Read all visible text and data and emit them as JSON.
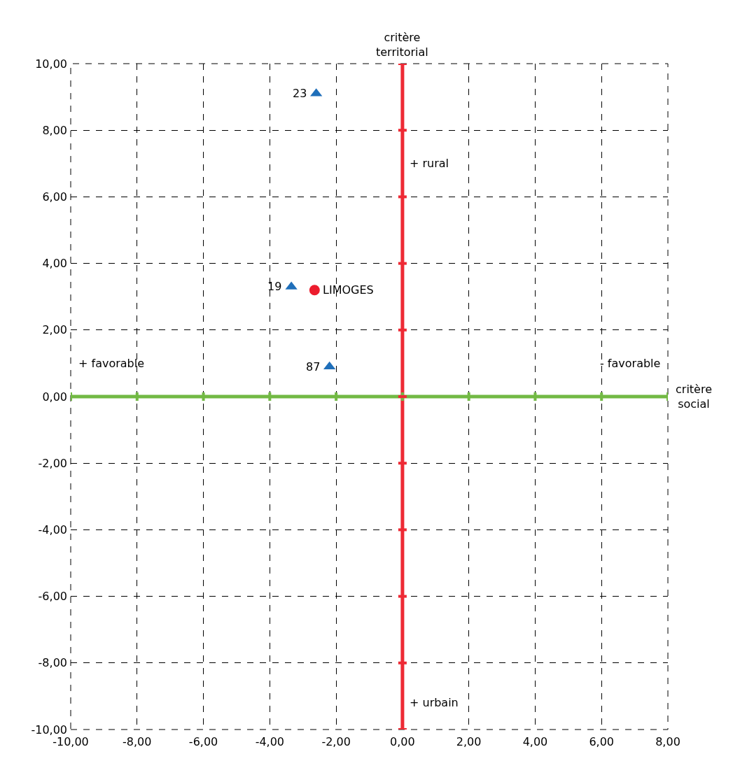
{
  "chart_data": {
    "type": "scatter",
    "xlabel": "critère social",
    "ylabel": "critère territorial",
    "xlim": [
      -10,
      8
    ],
    "ylim": [
      -10,
      10
    ],
    "xticks": [
      {
        "value": -10,
        "label": "-10,00"
      },
      {
        "value": -8,
        "label": "-8,00"
      },
      {
        "value": -6,
        "label": "-6,00"
      },
      {
        "value": -4,
        "label": "-4,00"
      },
      {
        "value": -2,
        "label": "-2,00"
      },
      {
        "value": 0,
        "label": "0,00"
      },
      {
        "value": 2,
        "label": "2,00"
      },
      {
        "value": 4,
        "label": "4,00"
      },
      {
        "value": 6,
        "label": "6,00"
      },
      {
        "value": 8,
        "label": "8,00"
      }
    ],
    "yticks": [
      {
        "value": -10,
        "label": "-10,00"
      },
      {
        "value": -8,
        "label": "-8,00"
      },
      {
        "value": -6,
        "label": "-6,00"
      },
      {
        "value": -4,
        "label": "-4,00"
      },
      {
        "value": -2,
        "label": "-2,00"
      },
      {
        "value": 0,
        "label": "0,00"
      },
      {
        "value": 2,
        "label": "2,00"
      },
      {
        "value": 4,
        "label": "4,00"
      },
      {
        "value": 6,
        "label": "6,00"
      },
      {
        "value": 8,
        "label": "8,00"
      },
      {
        "value": 10,
        "label": "10,00"
      }
    ],
    "grid": true,
    "series": [
      {
        "color": "#1f6fba",
        "marker": "triangle",
        "x": [
          -2.6,
          -3.35,
          -2.2
        ],
        "values": [
          9.1,
          3.3,
          0.9
        ]
      },
      {
        "color": "#ec1c2d",
        "marker": "circle",
        "x": [
          -2.65
        ],
        "values": [
          3.2
        ]
      }
    ],
    "ref_lines": [
      {
        "axis": "y",
        "value": 0,
        "color": "#72b944"
      },
      {
        "axis": "x",
        "value": 0,
        "color": "#ee2a35"
      }
    ],
    "annotations": [
      {
        "text": "23",
        "x": -2.6,
        "y": 9.1
      },
      {
        "text": "19",
        "x": -3.35,
        "y": 3.3
      },
      {
        "text": "LIMOGES",
        "x": -2.65,
        "y": 3.2
      },
      {
        "text": "87",
        "x": -2.2,
        "y": 0.9
      },
      {
        "text": "+ rural",
        "x": 0,
        "y": 7
      },
      {
        "text": "+ urbain",
        "x": 0,
        "y": -9.2
      },
      "+ favorable",
      "- favorable"
    ]
  }
}
